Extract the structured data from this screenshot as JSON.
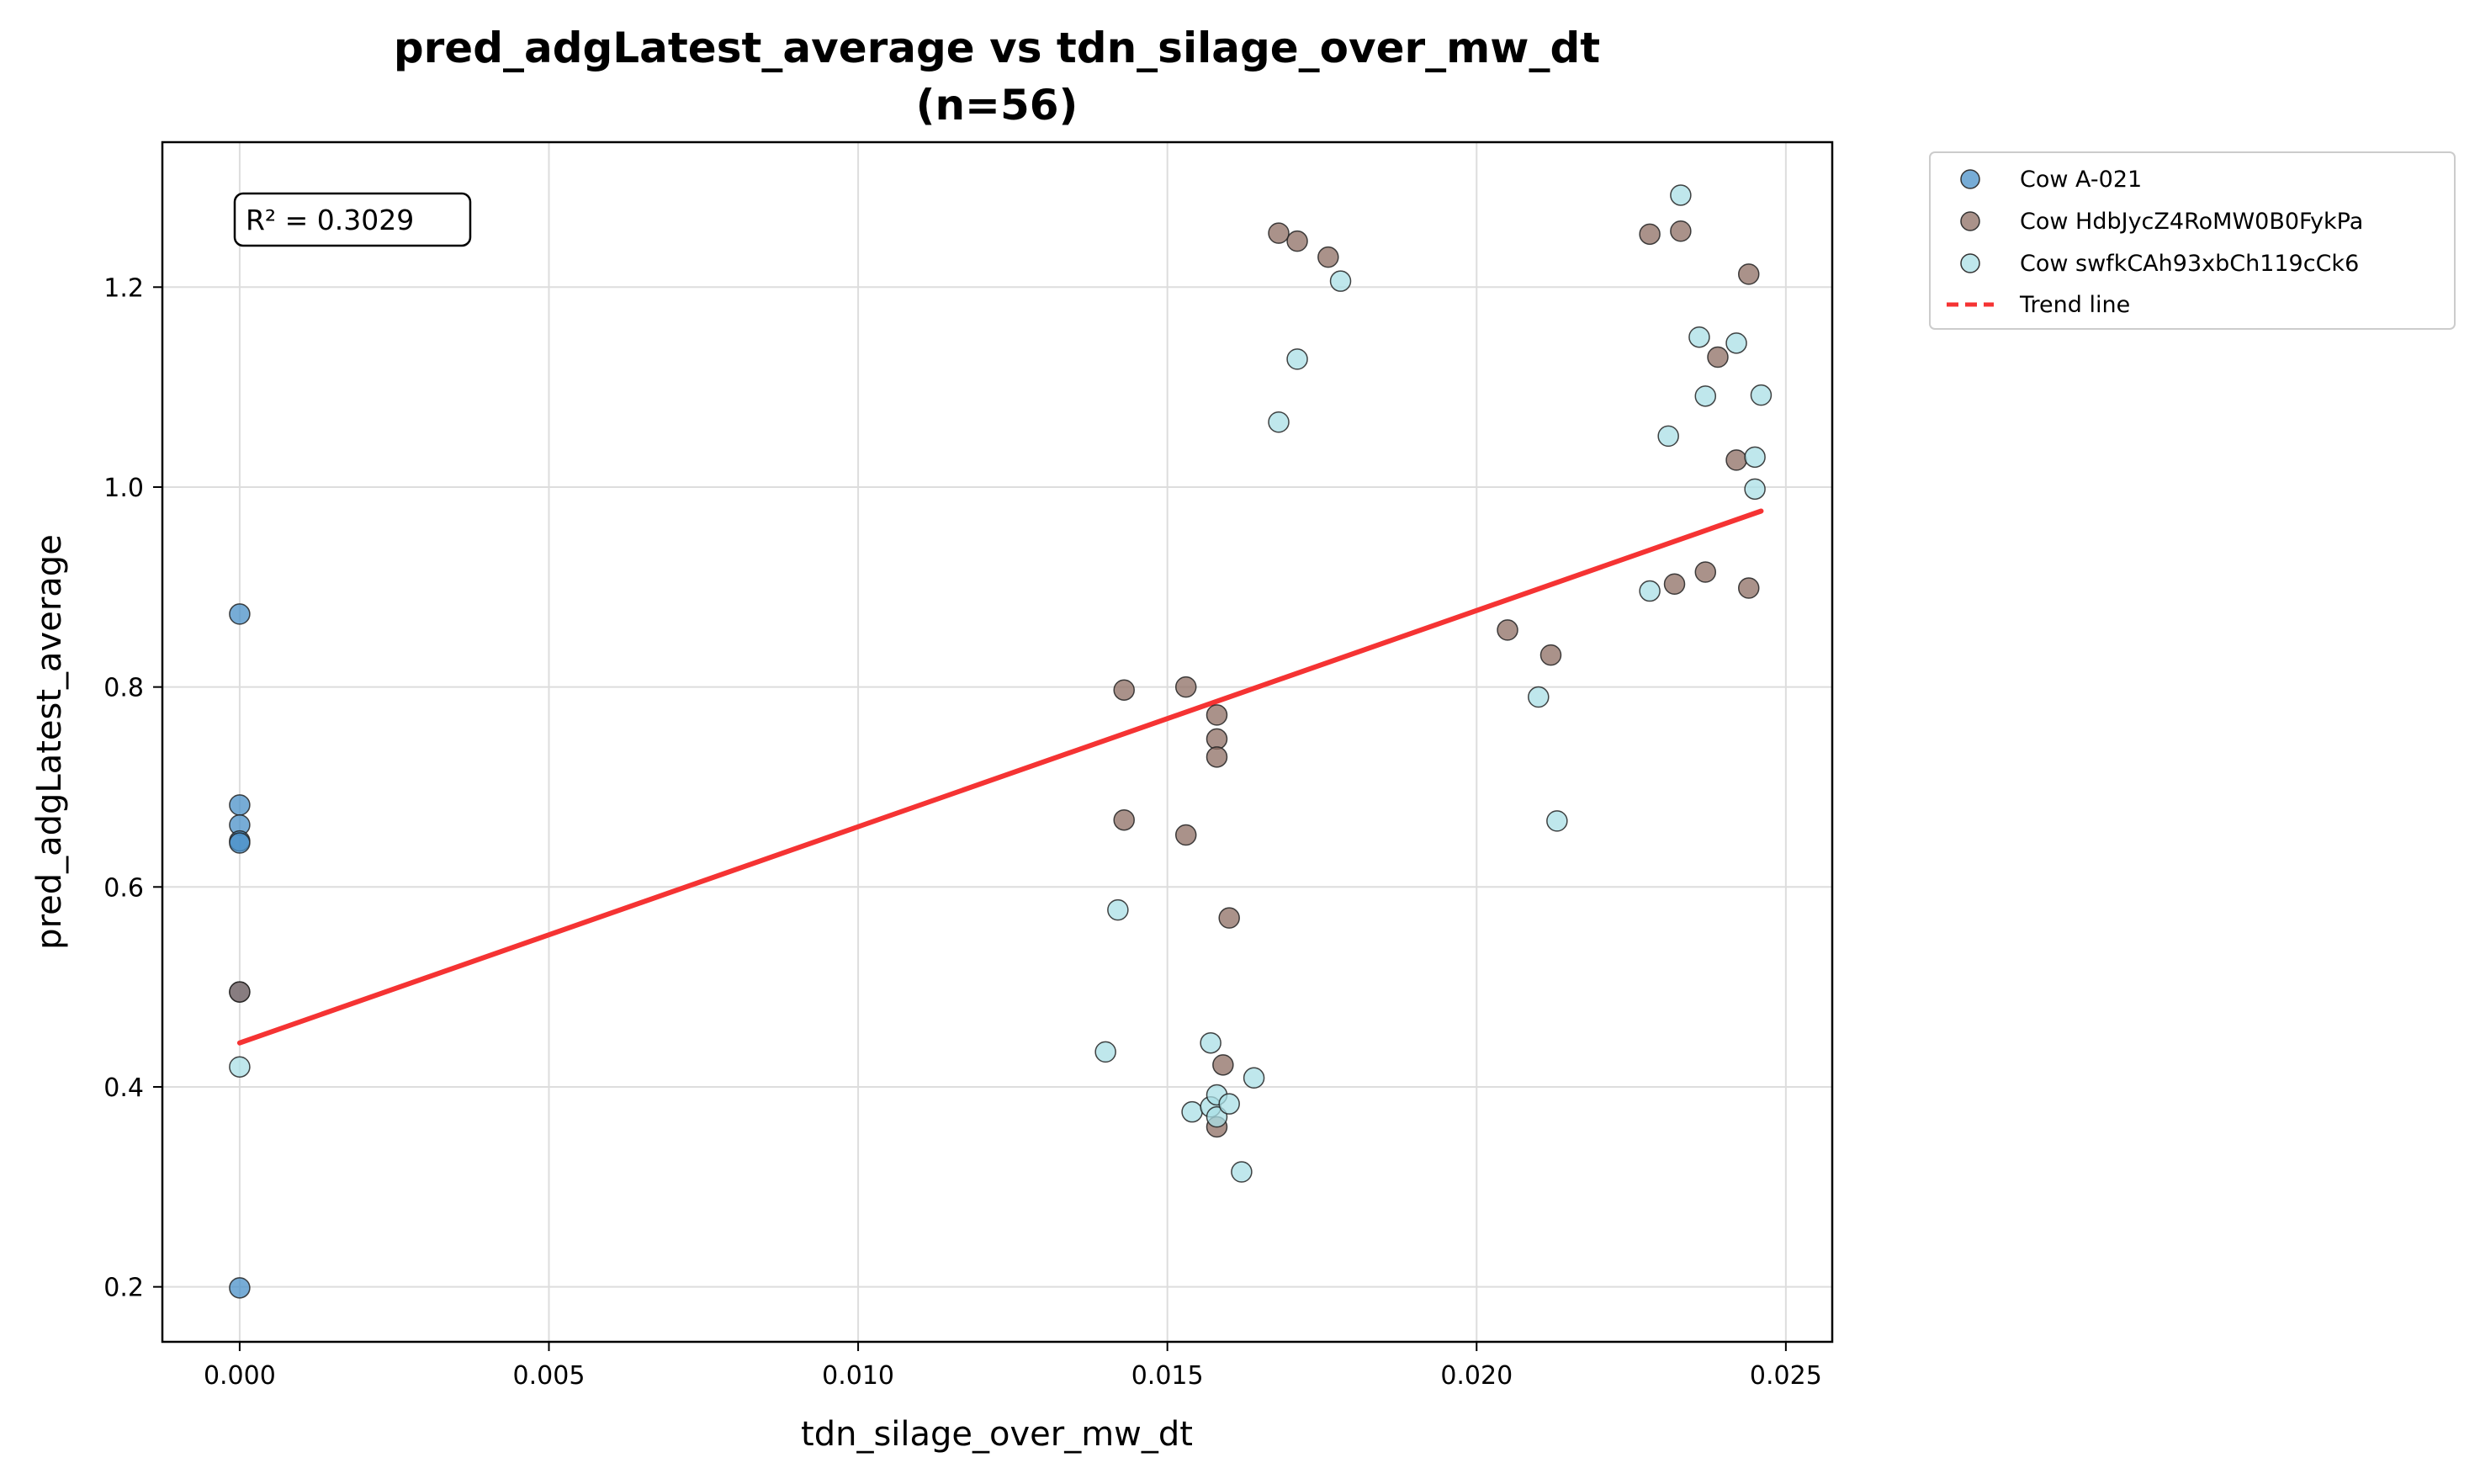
{
  "chart_data": {
    "type": "scatter",
    "title_line1": "pred_adgLatest_average vs tdn_silage_over_mw_dt",
    "title_line2": "(n=56)",
    "xlabel": "tdn_silage_over_mw_dt",
    "ylabel": "pred_adgLatest_average",
    "xlim": [
      -0.00125,
      0.02575
    ],
    "ylim": [
      0.145,
      1.345
    ],
    "xticks": [
      0.0,
      0.005,
      0.01,
      0.015,
      0.02,
      0.025
    ],
    "xtick_labels": [
      "0.000",
      "0.005",
      "0.010",
      "0.015",
      "0.020",
      "0.025"
    ],
    "yticks": [
      0.2,
      0.4,
      0.6,
      0.8,
      1.0,
      1.2
    ],
    "ytick_labels": [
      "0.2",
      "0.4",
      "0.6",
      "0.8",
      "1.0",
      "1.2"
    ],
    "grid": true,
    "legend_position": "outside-top-right",
    "annotation": "R² = 0.3029",
    "series": [
      {
        "name": "Cow A-021",
        "color": "#4a90c8",
        "points": [
          [
            0.0,
            0.873
          ],
          [
            0.0,
            0.682
          ],
          [
            0.0,
            0.662
          ],
          [
            0.0,
            0.646
          ],
          [
            0.0,
            0.644
          ],
          [
            0.0,
            0.495
          ],
          [
            0.0,
            0.199
          ]
        ]
      },
      {
        "name": "Cow HdbJycZ4RoMW0B0FykPa",
        "color": "#8e6d63",
        "points": [
          [
            0.0,
            0.495
          ],
          [
            0.0143,
            0.797
          ],
          [
            0.0143,
            0.667
          ],
          [
            0.0153,
            0.8
          ],
          [
            0.0153,
            0.652
          ],
          [
            0.0158,
            0.772
          ],
          [
            0.0158,
            0.748
          ],
          [
            0.0158,
            0.73
          ],
          [
            0.016,
            0.569
          ],
          [
            0.0159,
            0.422
          ],
          [
            0.0158,
            0.36
          ],
          [
            0.0168,
            1.254
          ],
          [
            0.0171,
            1.246
          ],
          [
            0.0176,
            1.23
          ],
          [
            0.0205,
            0.857
          ],
          [
            0.0212,
            0.832
          ],
          [
            0.0228,
            1.253
          ],
          [
            0.0232,
            0.903
          ],
          [
            0.0233,
            1.256
          ],
          [
            0.0237,
            0.915
          ],
          [
            0.0239,
            1.13
          ],
          [
            0.0242,
            1.027
          ],
          [
            0.0244,
            1.213
          ],
          [
            0.0244,
            0.899
          ]
        ]
      },
      {
        "name": "Cow swfkCAh93xbCh119cCk6",
        "color": "#aadfe6",
        "points": [
          [
            0.0,
            0.42
          ],
          [
            0.014,
            0.435
          ],
          [
            0.0142,
            0.577
          ],
          [
            0.0154,
            0.375
          ],
          [
            0.0157,
            0.38
          ],
          [
            0.0157,
            0.444
          ],
          [
            0.0158,
            0.392
          ],
          [
            0.0158,
            0.37
          ],
          [
            0.016,
            0.383
          ],
          [
            0.0162,
            0.315
          ],
          [
            0.0164,
            0.409
          ],
          [
            0.0168,
            1.065
          ],
          [
            0.0171,
            1.128
          ],
          [
            0.0178,
            1.206
          ],
          [
            0.021,
            0.79
          ],
          [
            0.0213,
            0.666
          ],
          [
            0.0228,
            0.896
          ],
          [
            0.0231,
            1.051
          ],
          [
            0.0233,
            1.292
          ],
          [
            0.0236,
            1.15
          ],
          [
            0.0237,
            1.091
          ],
          [
            0.0242,
            1.144
          ],
          [
            0.0245,
            1.03
          ],
          [
            0.0245,
            0.998
          ],
          [
            0.0246,
            1.092
          ]
        ]
      }
    ],
    "trend_line": {
      "name": "Trend line",
      "color": "#f53333",
      "points": [
        [
          0.0,
          0.444
        ],
        [
          0.0246,
          0.976
        ]
      ]
    }
  }
}
